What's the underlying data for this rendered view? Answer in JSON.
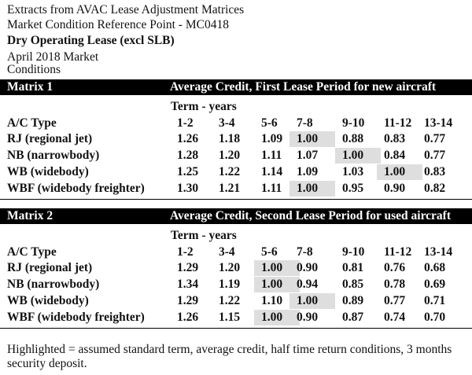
{
  "header": {
    "line1": "Extracts from AVAC Lease Adjustment Matrices",
    "line2": "Market Condition Reference Point - MC0418",
    "lease_type": "Dry Operating Lease (excl SLB)",
    "market_line1": "April 2018 Market",
    "market_line2": "Conditions"
  },
  "matrices": [
    {
      "name": "Matrix  1",
      "description": "Average Credit, First Lease Period for new aircraft",
      "term_label": "Term - years",
      "type_header": "A/C Type",
      "terms": [
        "1-2",
        "3-4",
        "5-6",
        "7-8",
        "9-10",
        "11-12",
        "13-14"
      ],
      "rows": [
        {
          "type": "RJ (regional jet)",
          "values": [
            "1.26",
            "1.18",
            "1.09",
            "1.00",
            "0.88",
            "0.83",
            "0.77"
          ],
          "highlight": 3
        },
        {
          "type": "NB (narrowbody)",
          "values": [
            "1.28",
            "1.20",
            "1.11",
            "1.07",
            "1.00",
            "0.84",
            "0.77"
          ],
          "highlight": 4
        },
        {
          "type": "WB (widebody)",
          "values": [
            "1.25",
            "1.22",
            "1.14",
            "1.09",
            "1.03",
            "1.00",
            "0.83"
          ],
          "highlight": 5
        },
        {
          "type": "WBF (widebody freighter)",
          "values": [
            "1.30",
            "1.21",
            "1.11",
            "1.00",
            "0.95",
            "0.90",
            "0.82"
          ],
          "highlight": 3
        }
      ]
    },
    {
      "name": "Matrix  2",
      "description": "Average Credit, Second Lease Period for used aircraft",
      "term_label": "Term - years",
      "type_header": "A/C Type",
      "terms": [
        "1-2",
        "3-4",
        "5-6",
        "7-8",
        "9-10",
        "11-12",
        "13-14"
      ],
      "rows": [
        {
          "type": "RJ (regional jet)",
          "values": [
            "1.29",
            "1.20",
            "1.00",
            "0.90",
            "0.81",
            "0.76",
            "0.68"
          ],
          "highlight": 2
        },
        {
          "type": "NB (narrowbody)",
          "values": [
            "1.34",
            "1.19",
            "1.00",
            "0.94",
            "0.85",
            "0.78",
            "0.69"
          ],
          "highlight": 2
        },
        {
          "type": "WB (widebody)",
          "values": [
            "1.29",
            "1.22",
            "1.10",
            "1.00",
            "0.89",
            "0.77",
            "0.71"
          ],
          "highlight": 3
        },
        {
          "type": "WBF (widebody freighter)",
          "values": [
            "1.26",
            "1.15",
            "1.00",
            "0.90",
            "0.87",
            "0.74",
            "0.70"
          ],
          "highlight": 2
        }
      ]
    }
  ],
  "footer": {
    "note": "Highlighted = assumed standard term, average credit, half time return conditions, 3 months security deposit."
  },
  "colors": {
    "highlight": "#dedede",
    "bar": "#000000"
  }
}
